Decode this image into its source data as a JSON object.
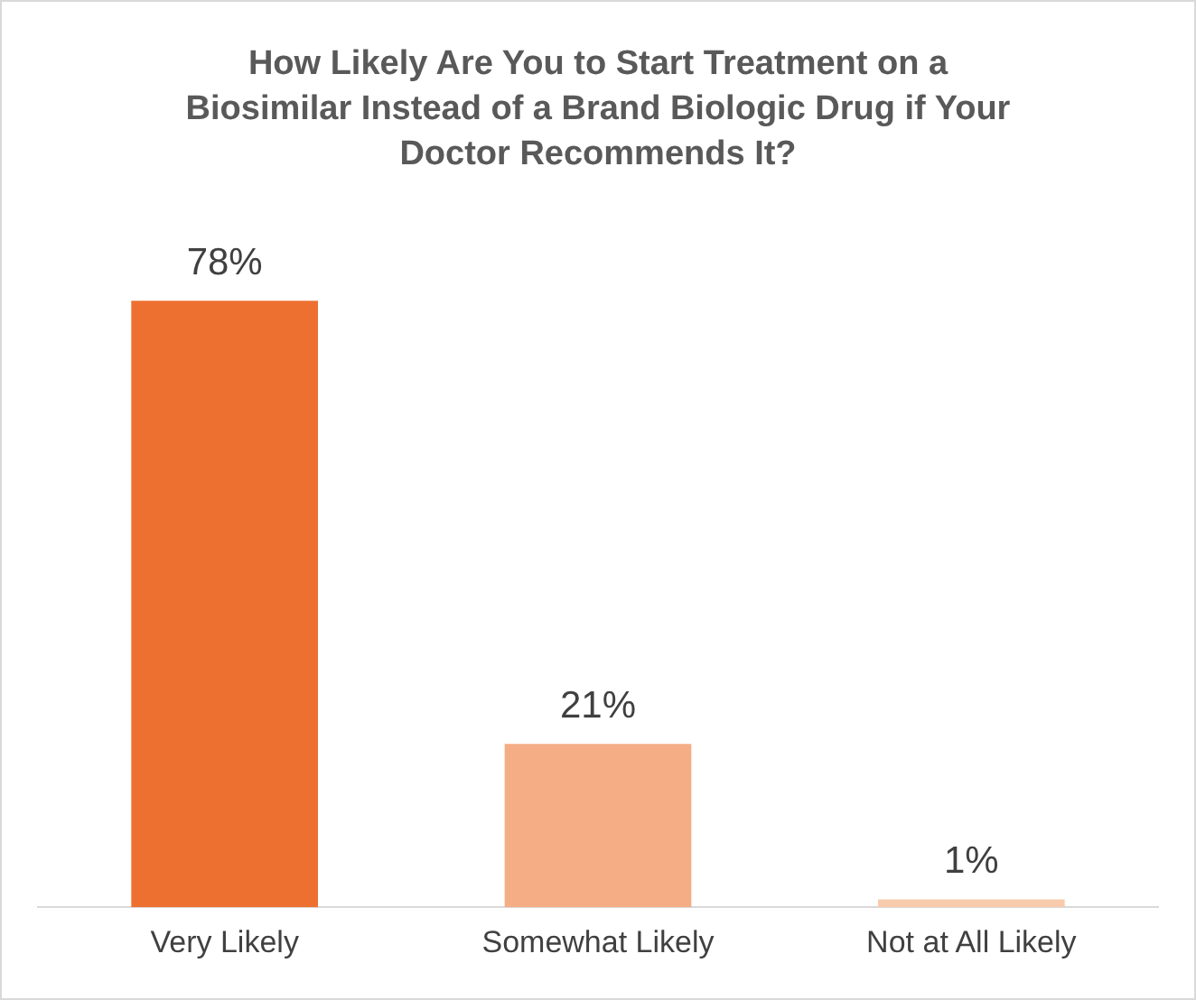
{
  "chart_data": {
    "type": "bar",
    "title": "How Likely Are You to Start Treatment on a Biosimilar Instead of a Brand Biologic Drug if Your Doctor Recommends It?",
    "categories": [
      "Very Likely",
      "Somewhat Likely",
      "Not at All Likely"
    ],
    "values": [
      78,
      21,
      1
    ],
    "value_labels": [
      "78%",
      "21%",
      "1%"
    ],
    "colors": [
      "#ed7031",
      "#f4ad84",
      "#f8cbad"
    ],
    "grid": false,
    "legend": false
  }
}
